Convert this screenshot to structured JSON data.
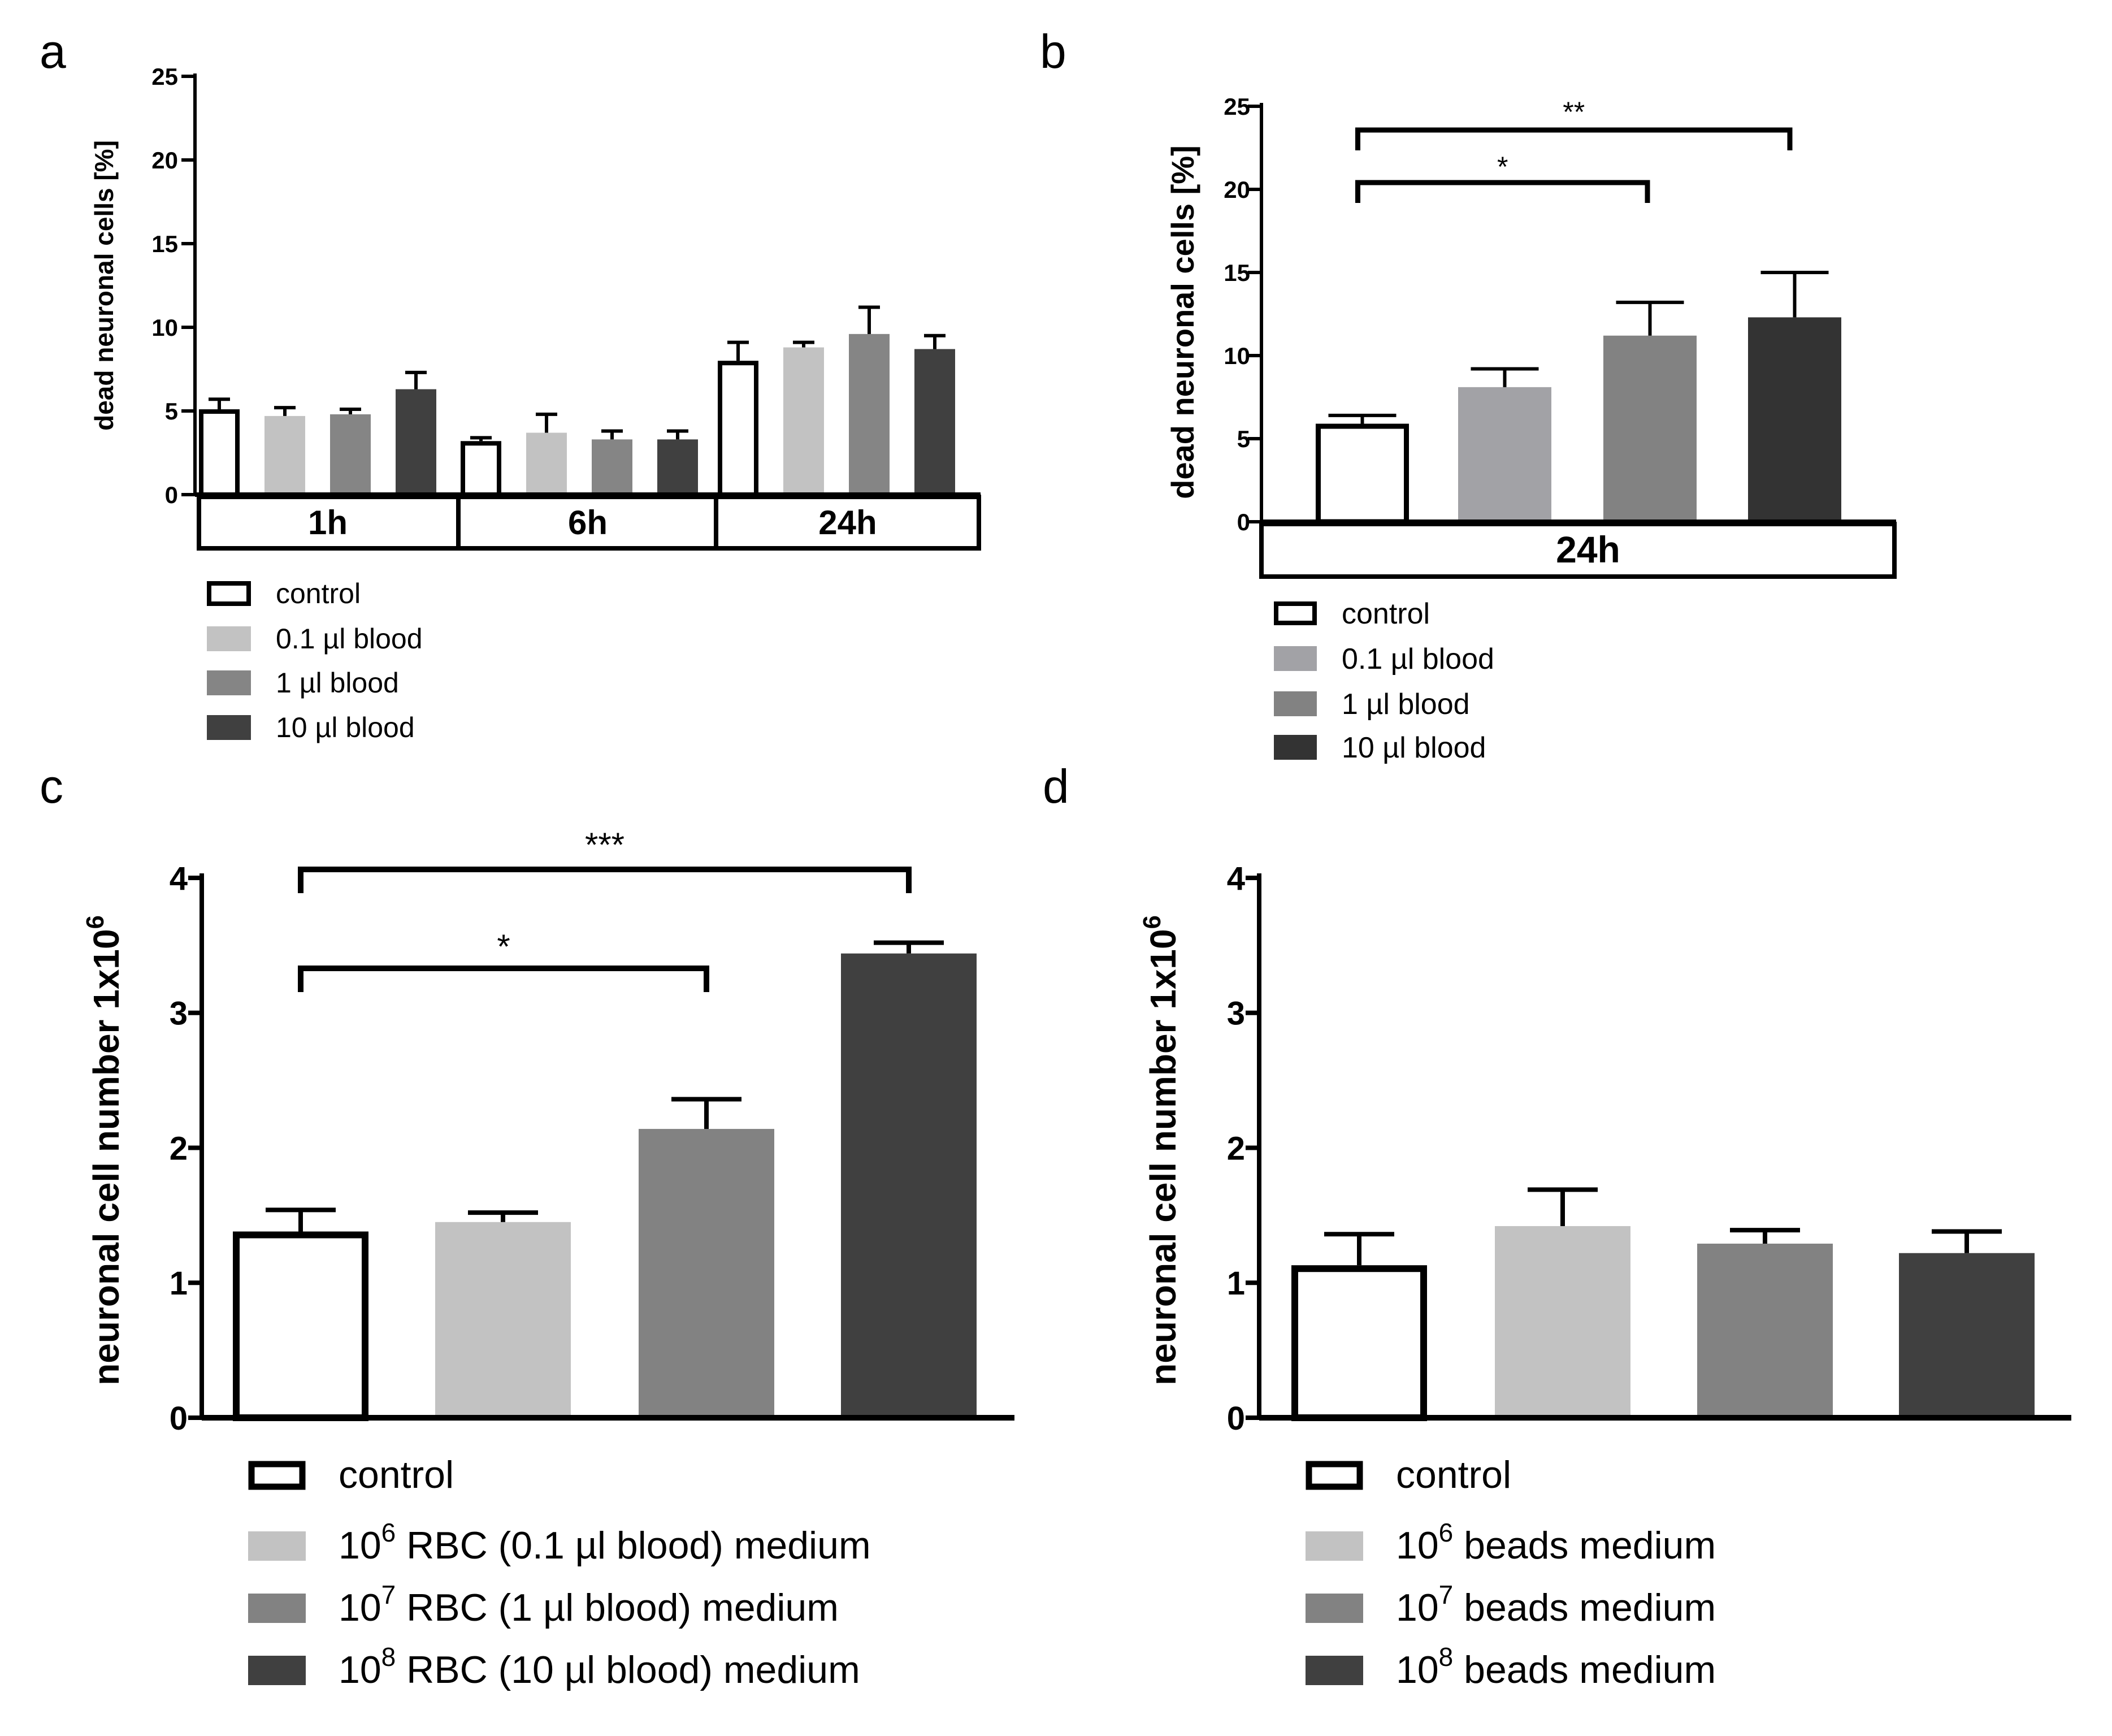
{
  "chart_data": [
    {
      "panel": "a",
      "type": "bar",
      "ylabel": "dead neuronal cells [%]",
      "ylim": [
        0,
        25
      ],
      "yticks": [
        "0",
        "5",
        "10",
        "15",
        "20",
        "25"
      ],
      "groups": [
        "1h",
        "6h",
        "24h"
      ],
      "legend": [
        "control",
        "0.1 µl blood",
        "1 µl blood",
        "10 µl blood"
      ],
      "colors": [
        "#ffffff",
        "#c2c2c2",
        "#858585",
        "#404040"
      ],
      "series": [
        {
          "name": "control",
          "values": [
            5.1,
            3.2,
            8.0
          ],
          "errors": [
            0.6,
            0.2,
            1.1
          ]
        },
        {
          "name": "0.1 µl blood",
          "values": [
            4.7,
            3.7,
            8.8
          ],
          "errors": [
            0.5,
            1.1,
            0.3
          ]
        },
        {
          "name": "1 µl blood",
          "values": [
            4.8,
            3.3,
            9.6
          ],
          "errors": [
            0.3,
            0.5,
            1.6
          ]
        },
        {
          "name": "10 µl blood",
          "values": [
            6.3,
            3.3,
            8.7
          ],
          "errors": [
            1.0,
            0.5,
            0.8
          ]
        }
      ]
    },
    {
      "panel": "b",
      "type": "bar",
      "ylabel": "dead neuronal cells [%]",
      "ylim": [
        0,
        25
      ],
      "yticks": [
        "0",
        "5",
        "10",
        "15",
        "20",
        "25"
      ],
      "groups": [
        "24h"
      ],
      "legend": [
        "control",
        "0.1 µl blood",
        "1 µl blood",
        "10 µl blood"
      ],
      "colors": [
        "#ffffff",
        "#a2a2a6",
        "#828282",
        "#333333"
      ],
      "series": [
        {
          "name": "control",
          "values": [
            5.9
          ],
          "errors": [
            0.5
          ]
        },
        {
          "name": "0.1 µl blood",
          "values": [
            8.1
          ],
          "errors": [
            1.1
          ]
        },
        {
          "name": "1 µl blood",
          "values": [
            11.2
          ],
          "errors": [
            2.0
          ]
        },
        {
          "name": "10 µl blood",
          "values": [
            12.3
          ],
          "errors": [
            2.7
          ]
        }
      ],
      "significance": [
        {
          "from": 0,
          "to": 3,
          "label": "**"
        },
        {
          "from": 0,
          "to": 2,
          "label": "*"
        }
      ]
    },
    {
      "panel": "c",
      "type": "bar",
      "ylabel": "neuronal cell number 1x10",
      "ylabel_sup": "6",
      "ylim": [
        0,
        4
      ],
      "yticks": [
        "0",
        "1",
        "2",
        "3",
        "4"
      ],
      "colors": [
        "#ffffff",
        "#c2c2c2",
        "#828282",
        "#404040"
      ],
      "values": [
        1.38,
        1.45,
        2.14,
        3.44
      ],
      "errors": [
        0.16,
        0.07,
        0.22,
        0.08
      ],
      "legend": [
        {
          "base": "control",
          "sup": "",
          "text": ""
        },
        {
          "base": "10",
          "sup": "6",
          "text": " RBC (0.1 µl blood) medium"
        },
        {
          "base": "10",
          "sup": "7",
          "text": " RBC (1 µl blood) medium"
        },
        {
          "base": "10",
          "sup": "8",
          "text": " RBC (10 µl blood) medium"
        }
      ],
      "significance": [
        {
          "from": 0,
          "to": 3,
          "label": "***"
        },
        {
          "from": 0,
          "to": 2,
          "label": "*"
        }
      ]
    },
    {
      "panel": "d",
      "type": "bar",
      "ylabel": "neuronal cell number 1x10",
      "ylabel_sup": "6",
      "ylim": [
        0,
        4
      ],
      "yticks": [
        "0",
        "1",
        "2",
        "3",
        "4"
      ],
      "colors": [
        "#ffffff",
        "#c2c2c2",
        "#828282",
        "#404040"
      ],
      "values": [
        1.13,
        1.42,
        1.29,
        1.22
      ],
      "errors": [
        0.23,
        0.27,
        0.1,
        0.16
      ],
      "legend": [
        {
          "base": "control",
          "sup": "",
          "text": ""
        },
        {
          "base": "10",
          "sup": "6",
          "text": " beads medium"
        },
        {
          "base": "10",
          "sup": "7",
          "text": " beads medium"
        },
        {
          "base": "10",
          "sup": "8",
          "text": " beads medium"
        }
      ]
    }
  ],
  "panel_labels": [
    "a",
    "b",
    "c",
    "d"
  ]
}
